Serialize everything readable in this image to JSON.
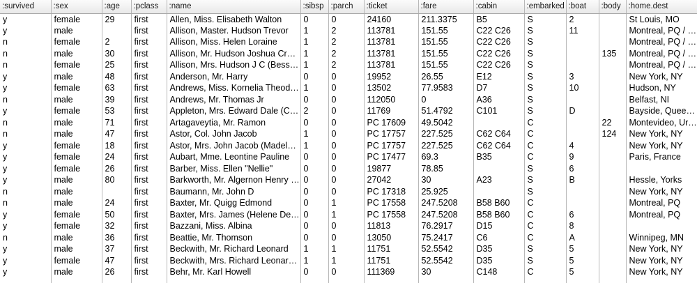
{
  "table": {
    "columns": [
      ":survived",
      ":sex",
      ":age",
      ":pclass",
      ":name",
      ":sibsp",
      ":parch",
      ":ticket",
      ":fare",
      ":cabin",
      ":embarked",
      ":boat",
      ":body",
      ":home.dest"
    ],
    "rows": [
      [
        "y",
        "female",
        "29",
        "first",
        "Allen, Miss. Elisabeth Walton",
        "0",
        "0",
        "24160",
        "211.3375",
        "B5",
        "S",
        "2",
        "",
        "St Louis, MO"
      ],
      [
        "y",
        "male",
        "",
        "first",
        "Allison, Master. Hudson Trevor",
        "1",
        "2",
        "113781",
        "151.55",
        "C22 C26",
        "S",
        "11",
        "",
        "Montreal, PQ / Chesterville, ON"
      ],
      [
        "n",
        "female",
        "2",
        "first",
        "Allison, Miss. Helen Loraine",
        "1",
        "2",
        "113781",
        "151.55",
        "C22 C26",
        "S",
        "",
        "",
        "Montreal, PQ / Chesterville, ON"
      ],
      [
        "n",
        "male",
        "30",
        "first",
        "Allison, Mr. Hudson Joshua Creighton",
        "1",
        "2",
        "113781",
        "151.55",
        "C22 C26",
        "S",
        "",
        "135",
        "Montreal, PQ / Chesterville, ON"
      ],
      [
        "n",
        "female",
        "25",
        "first",
        "Allison, Mrs. Hudson J C (Bessie Waldo Daniels)",
        "1",
        "2",
        "113781",
        "151.55",
        "C22 C26",
        "S",
        "",
        "",
        "Montreal, PQ / Chesterville, ON"
      ],
      [
        "y",
        "male",
        "48",
        "first",
        "Anderson, Mr. Harry",
        "0",
        "0",
        "19952",
        "26.55",
        "E12",
        "S",
        "3",
        "",
        "New York, NY"
      ],
      [
        "y",
        "female",
        "63",
        "first",
        "Andrews, Miss. Kornelia Theodosia",
        "1",
        "0",
        "13502",
        "77.9583",
        "D7",
        "S",
        "10",
        "",
        "Hudson, NY"
      ],
      [
        "n",
        "male",
        "39",
        "first",
        "Andrews, Mr. Thomas Jr",
        "0",
        "0",
        "112050",
        "0",
        "A36",
        "S",
        "",
        "",
        "Belfast, NI"
      ],
      [
        "y",
        "female",
        "53",
        "first",
        "Appleton, Mrs. Edward Dale (Charlotte Lamson)",
        "2",
        "0",
        "11769",
        "51.4792",
        "C101",
        "S",
        "D",
        "",
        "Bayside, Queens, NY"
      ],
      [
        "n",
        "male",
        "71",
        "first",
        "Artagaveytia, Mr. Ramon",
        "0",
        "0",
        "PC 17609",
        "49.5042",
        "",
        "C",
        "",
        "22",
        "Montevideo, Uruguay"
      ],
      [
        "n",
        "male",
        "47",
        "first",
        "Astor, Col. John Jacob",
        "1",
        "0",
        "PC 17757",
        "227.525",
        "C62 C64",
        "C",
        "",
        "124",
        "New York, NY"
      ],
      [
        "y",
        "female",
        "18",
        "first",
        "Astor, Mrs. John Jacob (Madeleine Talmadge Force)",
        "1",
        "0",
        "PC 17757",
        "227.525",
        "C62 C64",
        "C",
        "4",
        "",
        "New York, NY"
      ],
      [
        "y",
        "female",
        "24",
        "first",
        "Aubart, Mme. Leontine Pauline",
        "0",
        "0",
        "PC 17477",
        "69.3",
        "B35",
        "C",
        "9",
        "",
        "Paris, France"
      ],
      [
        "y",
        "female",
        "26",
        "first",
        "Barber, Miss. Ellen \"Nellie\"",
        "0",
        "0",
        "19877",
        "78.85",
        "",
        "S",
        "6",
        "",
        ""
      ],
      [
        "y",
        "male",
        "80",
        "first",
        "Barkworth, Mr. Algernon Henry Wilson",
        "0",
        "0",
        "27042",
        "30",
        "A23",
        "S",
        "B",
        "",
        "Hessle, Yorks"
      ],
      [
        "n",
        "male",
        "",
        "first",
        "Baumann, Mr. John D",
        "0",
        "0",
        "PC 17318",
        "25.925",
        "",
        "S",
        "",
        "",
        "New York, NY"
      ],
      [
        "n",
        "male",
        "24",
        "first",
        "Baxter, Mr. Quigg Edmond",
        "0",
        "1",
        "PC 17558",
        "247.5208",
        "B58 B60",
        "C",
        "",
        "",
        "Montreal, PQ"
      ],
      [
        "y",
        "female",
        "50",
        "first",
        "Baxter, Mrs. James (Helene DeLaudeniere Chaput)",
        "0",
        "1",
        "PC 17558",
        "247.5208",
        "B58 B60",
        "C",
        "6",
        "",
        "Montreal, PQ"
      ],
      [
        "y",
        "female",
        "32",
        "first",
        "Bazzani, Miss. Albina",
        "0",
        "0",
        "11813",
        "76.2917",
        "D15",
        "C",
        "8",
        "",
        ""
      ],
      [
        "n",
        "male",
        "36",
        "first",
        "Beattie, Mr. Thomson",
        "0",
        "0",
        "13050",
        "75.2417",
        "C6",
        "C",
        "A",
        "",
        "Winnipeg, MN"
      ],
      [
        "y",
        "male",
        "37",
        "first",
        "Beckwith, Mr. Richard Leonard",
        "1",
        "1",
        "11751",
        "52.5542",
        "D35",
        "S",
        "5",
        "",
        "New York, NY"
      ],
      [
        "y",
        "female",
        "47",
        "first",
        "Beckwith, Mrs. Richard Leonard (Sallie Monypeny)",
        "1",
        "1",
        "11751",
        "52.5542",
        "D35",
        "S",
        "5",
        "",
        "New York, NY"
      ],
      [
        "y",
        "male",
        "26",
        "first",
        "Behr, Mr. Karl Howell",
        "0",
        "0",
        "111369",
        "30",
        "C148",
        "C",
        "5",
        "",
        "New York, NY"
      ],
      [
        "",
        "",
        "",
        "",
        "",
        "",
        "",
        "",
        "",
        "",
        "",
        "",
        "",
        ""
      ]
    ]
  }
}
